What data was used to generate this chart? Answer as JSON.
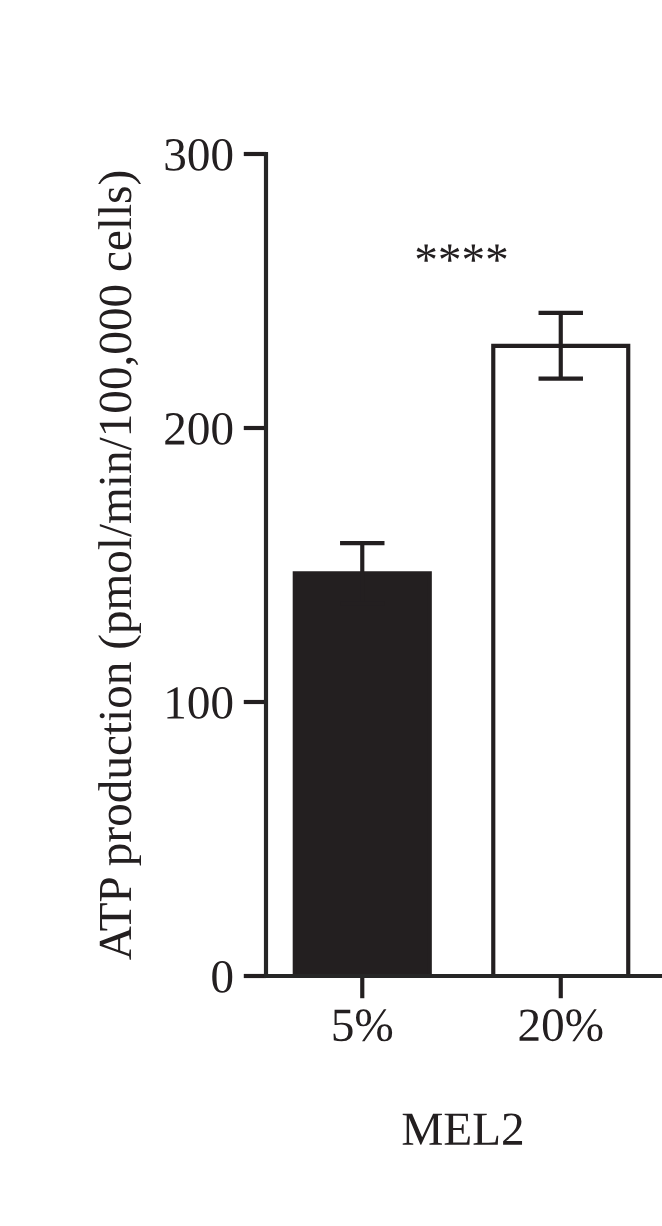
{
  "chart_data": {
    "type": "bar",
    "xlabel": "MEL2",
    "ylabel": "ATP production (pmol/min/100,000 cells)",
    "categories": [
      "5%",
      "20%"
    ],
    "series": [
      {
        "colors": [
          "#231f20",
          "#ffffff"
        ],
        "values": [
          147,
          230
        ],
        "errors": [
          11,
          12
        ]
      }
    ],
    "ylim": [
      0,
      300
    ],
    "yticks": [
      0,
      100,
      200,
      300
    ],
    "grid": false,
    "legend": false,
    "annotations": [
      "****"
    ]
  }
}
